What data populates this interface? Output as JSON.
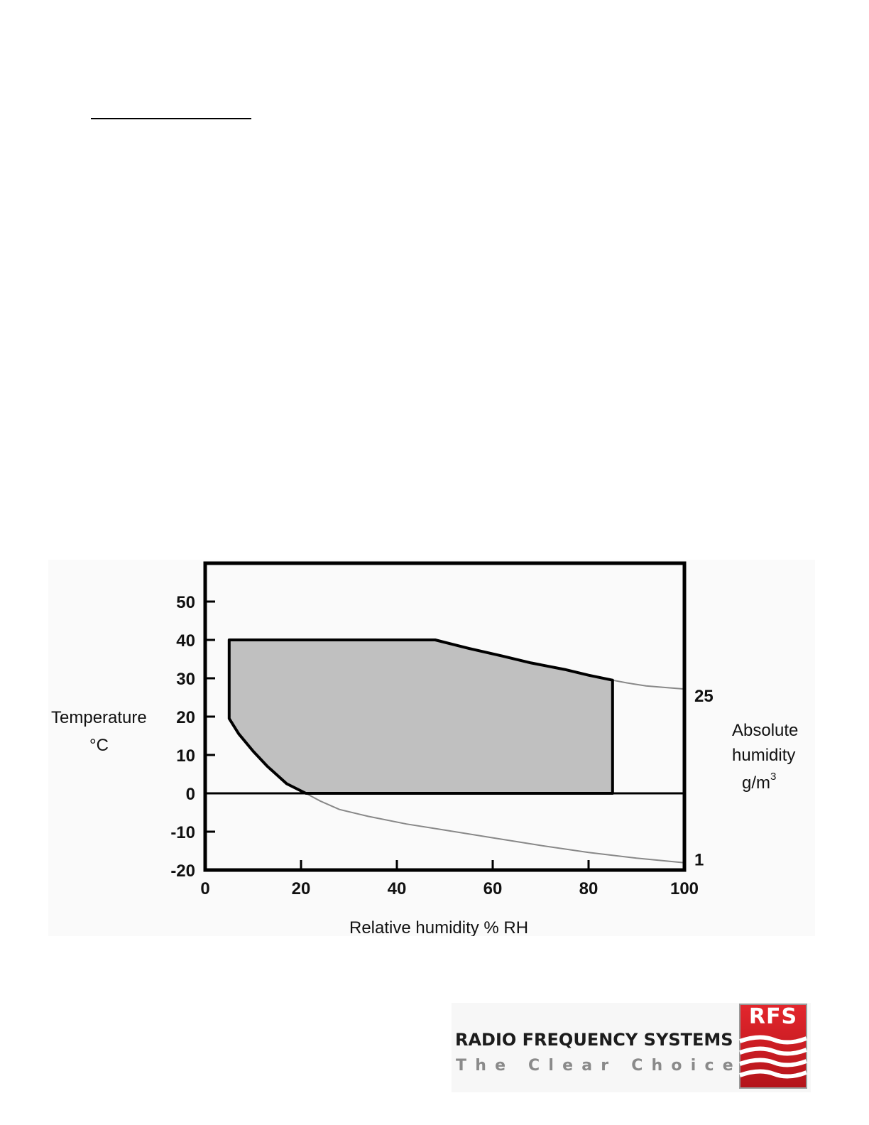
{
  "chart_data": {
    "type": "area",
    "xlabel": "Relative humidity  % RH",
    "ylabel": "Temperature",
    "ylabel_unit": "°C",
    "y2label": [
      "Absolute",
      "humidity",
      "g/m"
    ],
    "y2label_sup": "3",
    "xlim": [
      0,
      100
    ],
    "ylim": [
      -20,
      60
    ],
    "x_ticks": [
      "0",
      "20",
      "40",
      "60",
      "80",
      "100"
    ],
    "y_ticks": [
      "50",
      "40",
      "30",
      "20",
      "10",
      "0",
      "-10",
      "-20"
    ],
    "y2_ticks": [
      "25",
      "1"
    ],
    "grid": false,
    "operating_region": {
      "fill_color": "#c0c0c0",
      "outline_color": "#000000",
      "points": [
        [
          5,
          40
        ],
        [
          48,
          40
        ],
        [
          55,
          37.8
        ],
        [
          62,
          35.8
        ],
        [
          68,
          34
        ],
        [
          75,
          32.3
        ],
        [
          80,
          30.8
        ],
        [
          85,
          29.5
        ],
        [
          85,
          0
        ],
        [
          21,
          0
        ],
        [
          17,
          2.5
        ],
        [
          13,
          7
        ],
        [
          10,
          11
        ],
        [
          7,
          15.5
        ],
        [
          5,
          19.5
        ]
      ]
    },
    "curves": [
      {
        "name": "25",
        "color": "#888888",
        "points": [
          [
            85,
            29.5
          ],
          [
            88,
            28.8
          ],
          [
            92,
            28
          ],
          [
            96,
            27.6
          ],
          [
            100,
            27.2
          ]
        ]
      },
      {
        "name": "1",
        "color": "#888888",
        "points": [
          [
            21,
            0
          ],
          [
            24,
            -2
          ],
          [
            28,
            -4.2
          ],
          [
            34,
            -6
          ],
          [
            42,
            -8
          ],
          [
            50,
            -9.6
          ],
          [
            60,
            -11.6
          ],
          [
            70,
            -13.6
          ],
          [
            80,
            -15.4
          ],
          [
            90,
            -16.9
          ],
          [
            100,
            -18.1
          ]
        ]
      }
    ]
  },
  "footer": {
    "company": "RADIO FREQUENCY SYSTEMS",
    "tagline": "The Clear Choice",
    "registered": "®",
    "logo_text": "RFS",
    "logo_color": "#d41f26"
  }
}
